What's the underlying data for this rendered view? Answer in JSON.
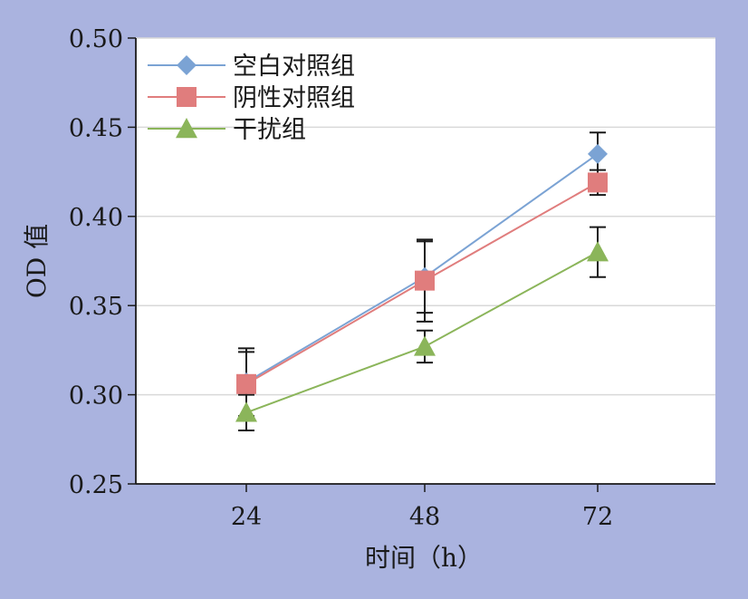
{
  "chart_data": {
    "type": "line",
    "title": "",
    "xlabel": "时间（h）",
    "ylabel": "OD 值",
    "categories": [
      "24",
      "48",
      "72"
    ],
    "ylim": [
      0.25,
      0.5
    ],
    "yticks": [
      "0.25",
      "0.30",
      "0.35",
      "0.40",
      "0.45",
      "0.50"
    ],
    "grid": "horizontal",
    "legend_position": "top-left",
    "series": [
      {
        "name": "空白对照组",
        "marker": "diamond",
        "color": "#7ba3d4",
        "values": [
          0.307,
          0.366,
          0.435
        ],
        "error": [
          0.019,
          0.02,
          0.012
        ]
      },
      {
        "name": "阴性对照组",
        "marker": "square",
        "color": "#e07d7d",
        "values": [
          0.306,
          0.364,
          0.419
        ],
        "error": [
          0.018,
          0.023,
          0.007
        ]
      },
      {
        "name": "干扰组",
        "marker": "triangle",
        "color": "#8bb55a",
        "values": [
          0.29,
          0.327,
          0.38
        ],
        "error": [
          0.01,
          0.009,
          0.014
        ]
      }
    ]
  }
}
